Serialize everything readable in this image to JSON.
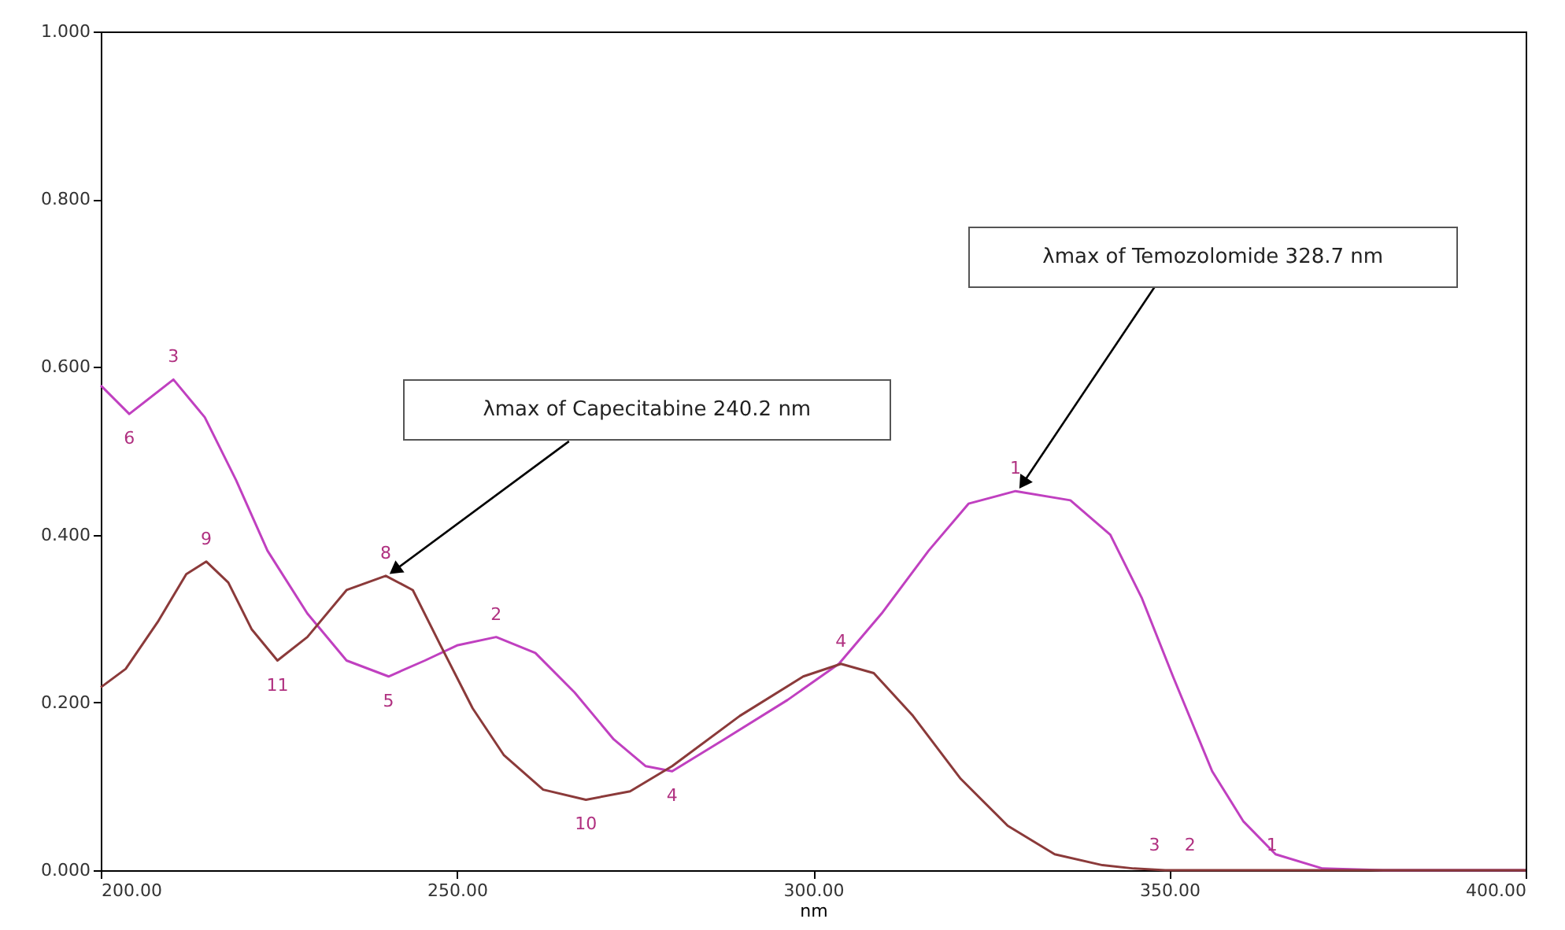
{
  "chart_data": {
    "type": "line",
    "xlabel": "nm",
    "xlim": [
      200,
      400
    ],
    "ylim": [
      0,
      1
    ],
    "xticks": [
      {
        "value": 200,
        "label": "200.00"
      },
      {
        "value": 250,
        "label": "250.00"
      },
      {
        "value": 300,
        "label": "300.00"
      },
      {
        "value": 350,
        "label": "350.00"
      },
      {
        "value": 400,
        "label": "400.00"
      }
    ],
    "yticks": [
      {
        "value": 0,
        "label": "0.000"
      },
      {
        "value": 0.2,
        "label": "0.200"
      },
      {
        "value": 0.4,
        "label": "0.400"
      },
      {
        "value": 0.6,
        "label": "0.600"
      },
      {
        "value": 0.8,
        "label": "0.800"
      },
      {
        "value": 1,
        "label": "1.000"
      }
    ],
    "grid": false,
    "legend": false,
    "line_style": "solid",
    "series": [
      {
        "color": "#c040c0",
        "x": [
          200,
          204,
          210.2,
          214.6,
          219,
          223.4,
          229,
          234.5,
          240.4,
          245.5,
          250,
          255.5,
          261,
          266.5,
          272,
          276.5,
          280.2,
          287.5,
          296.4,
          303.6,
          309.6,
          316.2,
          321.8,
          328.4,
          336.1,
          341.7,
          346.1,
          350.5,
          356,
          360.4,
          364.9,
          371.5,
          380,
          400
        ],
        "values": [
          0.578,
          0.544,
          0.585,
          0.54,
          0.465,
          0.381,
          0.306,
          0.25,
          0.231,
          0.25,
          0.268,
          0.278,
          0.259,
          0.212,
          0.156,
          0.124,
          0.118,
          0.156,
          0.203,
          0.246,
          0.306,
          0.381,
          0.437,
          0.452,
          0.441,
          0.4,
          0.325,
          0.231,
          0.118,
          0.058,
          0.019,
          0.002,
          0,
          0
        ]
      },
      {
        "color": "#8b3a3a",
        "x": [
          200,
          203.5,
          208,
          212,
          214.8,
          217.9,
          221.2,
          224.8,
          229,
          234.5,
          240,
          243.8,
          247.7,
          252.2,
          256.6,
          262.1,
          268.1,
          274.3,
          280.2,
          289.7,
          298.6,
          303.9,
          308.5,
          314,
          320.7,
          327.3,
          333.9,
          340.6,
          345,
          349.4,
          400
        ],
        "values": [
          0.218,
          0.24,
          0.296,
          0.353,
          0.368,
          0.343,
          0.287,
          0.25,
          0.278,
          0.334,
          0.351,
          0.334,
          0.268,
          0.193,
          0.137,
          0.096,
          0.084,
          0.094,
          0.124,
          0.184,
          0.231,
          0.246,
          0.235,
          0.184,
          0.109,
          0.053,
          0.019,
          0.006,
          0.002,
          0,
          0
        ]
      }
    ],
    "annotations": [
      {
        "text": "λmax of Capecitabine 240.2 nm",
        "x": 240.2,
        "y": 0.351
      },
      {
        "text": "λmax of Temozolomide 328.7 nm",
        "x": 328.7,
        "y": 0.452
      },
      {
        "text": "6",
        "x": 204,
        "y": 0.544
      },
      {
        "text": "3",
        "x": 210.2,
        "y": 0.585
      },
      {
        "text": "5",
        "x": 240.4,
        "y": 0.231
      },
      {
        "text": "2",
        "x": 255.5,
        "y": 0.278
      },
      {
        "text": "4",
        "x": 280.2,
        "y": 0.118
      },
      {
        "text": "1",
        "x": 328.4,
        "y": 0.452
      },
      {
        "text": "9",
        "x": 214.8,
        "y": 0.368
      },
      {
        "text": "11",
        "x": 224.8,
        "y": 0.25
      },
      {
        "text": "8",
        "x": 240,
        "y": 0.351
      },
      {
        "text": "10",
        "x": 268.1,
        "y": 0.084
      },
      {
        "text": "4",
        "x": 303.9,
        "y": 0.246
      },
      {
        "text": "3",
        "x": 347.9,
        "y": 0.003
      },
      {
        "text": "2",
        "x": 352.9,
        "y": 0.003
      },
      {
        "text": "1",
        "x": 364.4,
        "y": 0.003
      }
    ]
  }
}
